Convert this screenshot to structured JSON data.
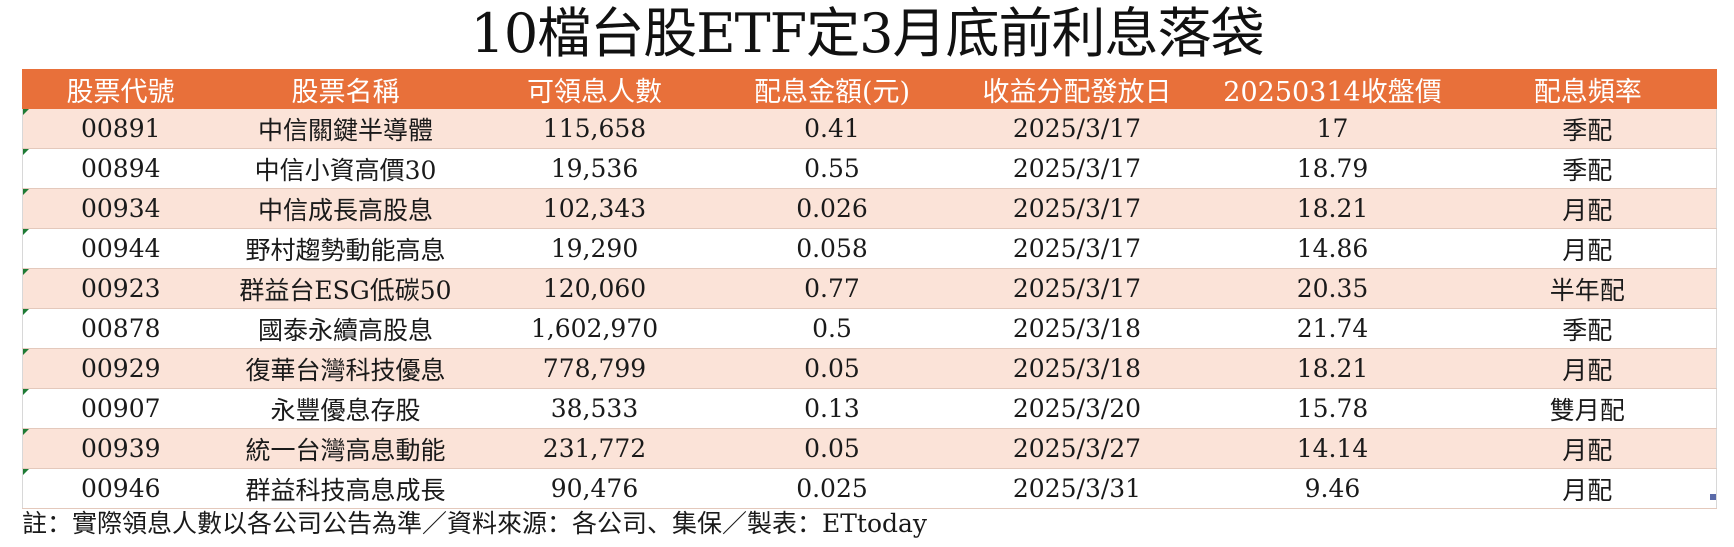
{
  "title": "10檔台股ETF定3月底前利息落袋",
  "table": {
    "headers": [
      "股票代號",
      "股票名稱",
      "可領息人數",
      "配息金額(元)",
      "收益分配發放日",
      "20250314收盤價",
      "配息頻率"
    ],
    "rows": [
      [
        "00891",
        "中信關鍵半導體",
        "115,658",
        "0.41",
        "2025/3/17",
        "17",
        "季配"
      ],
      [
        "00894",
        "中信小資高價30",
        "19,536",
        "0.55",
        "2025/3/17",
        "18.79",
        "季配"
      ],
      [
        "00934",
        "中信成長高股息",
        "102,343",
        "0.026",
        "2025/3/17",
        "18.21",
        "月配"
      ],
      [
        "00944",
        "野村趨勢動能高息",
        "19,290",
        "0.058",
        "2025/3/17",
        "14.86",
        "月配"
      ],
      [
        "00923",
        "群益台ESG低碳50",
        "120,060",
        "0.77",
        "2025/3/17",
        "20.35",
        "半年配"
      ],
      [
        "00878",
        "國泰永續高股息",
        "1,602,970",
        "0.5",
        "2025/3/18",
        "21.74",
        "季配"
      ],
      [
        "00929",
        "復華台灣科技優息",
        "778,799",
        "0.05",
        "2025/3/18",
        "18.21",
        "月配"
      ],
      [
        "00907",
        "永豐優息存股",
        "38,533",
        "0.13",
        "2025/3/20",
        "15.78",
        "雙月配"
      ],
      [
        "00939",
        "統一台灣高息動能",
        "231,772",
        "0.05",
        "2025/3/27",
        "14.14",
        "月配"
      ],
      [
        "00946",
        "群益科技高息成長",
        "90,476",
        "0.025",
        "2025/3/31",
        "9.46",
        "月配"
      ]
    ]
  },
  "footnote": "註：實際領息人數以各公司公告為準／資料來源：各公司、集保／製表：ETtoday",
  "colors": {
    "header_bg": "#e8703a",
    "header_text": "#ffffff",
    "row_alt_bg": "#fbe3d8",
    "row_plain_bg": "#ffffff",
    "cell_marker": "#1e7b34"
  }
}
